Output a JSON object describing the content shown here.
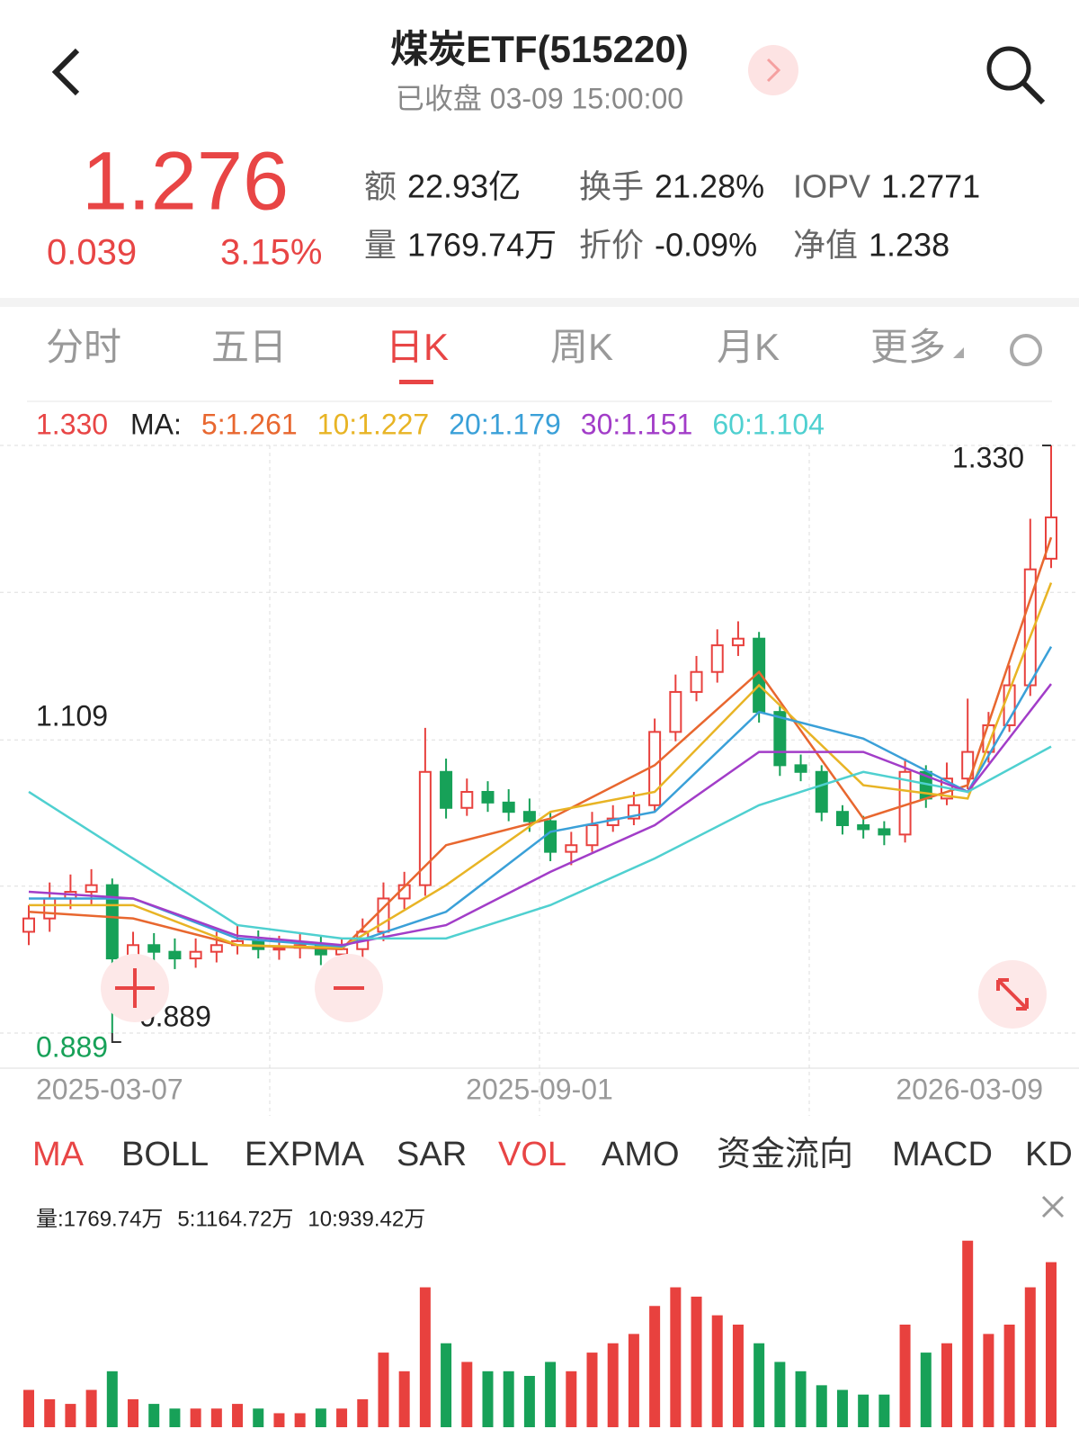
{
  "header": {
    "title": "煤炭ETF(515220)",
    "status": "已收盘 03-09 15:00:00"
  },
  "quote": {
    "price": "1.276",
    "change": "0.039",
    "change_pct": "3.15%",
    "stats": [
      [
        "额",
        "22.93亿"
      ],
      [
        "换手",
        "21.28%"
      ],
      [
        "IOPV",
        "1.2771"
      ],
      [
        "量",
        "1769.74万"
      ],
      [
        "折价",
        "-0.09%"
      ],
      [
        "净值",
        "1.238"
      ]
    ]
  },
  "tabs": [
    "分时",
    "五日",
    "日K",
    "周K",
    "月K",
    "更多"
  ],
  "ma_legend": [
    "MA:",
    "5:1.261",
    "10:1.227",
    "20:1.179",
    "30:1.151",
    "60:1.104"
  ],
  "indicator_tabs": [
    "MA",
    "BOLL",
    "EXPMA",
    "SAR",
    "VOL",
    "AMO",
    "资金流向",
    "MACD",
    "KD"
  ],
  "volume_legend": [
    "量:1769.74万",
    "5:1164.72万",
    "10:939.42万"
  ],
  "chart_data": {
    "type": "candlestick",
    "ylim": [
      0.889,
      1.33
    ],
    "yticks": [
      0.889,
      1.109,
      {
        "value": 1.33,
        "label": "1.330"
      }
    ],
    "x_labels": [
      {
        "index": 0,
        "label": "2025-03-07"
      },
      {
        "index": 25,
        "label": "2025-09-01"
      },
      {
        "index": 49,
        "label": "2026-03-09"
      }
    ],
    "up_color": "#e8413e",
    "down_color": "#17a158",
    "open": [
      0.965,
      0.975,
      0.99,
      0.995,
      1.0,
      0.945,
      0.955,
      0.95,
      0.945,
      0.95,
      0.955,
      0.958,
      0.952,
      0.953,
      0.955,
      0.948,
      0.952,
      0.965,
      0.99,
      1.0,
      1.085,
      1.058,
      1.07,
      1.062,
      1.055,
      1.048,
      1.025,
      1.03,
      1.045,
      1.05,
      1.06,
      1.115,
      1.145,
      1.16,
      1.18,
      1.185,
      1.13,
      1.09,
      1.085,
      1.055,
      1.045,
      1.042,
      1.038,
      1.085,
      1.065,
      1.08,
      1.1,
      1.12,
      1.15,
      1.245
    ],
    "high": [
      0.985,
      1.002,
      1.008,
      1.012,
      1.005,
      0.965,
      0.964,
      0.96,
      0.96,
      0.965,
      0.97,
      0.966,
      0.962,
      0.964,
      0.962,
      0.96,
      0.975,
      1.002,
      1.01,
      1.118,
      1.095,
      1.08,
      1.078,
      1.072,
      1.065,
      1.055,
      1.04,
      1.055,
      1.06,
      1.07,
      1.125,
      1.158,
      1.172,
      1.192,
      1.198,
      1.19,
      1.135,
      1.098,
      1.09,
      1.06,
      1.052,
      1.048,
      1.095,
      1.09,
      1.092,
      1.14,
      1.13,
      1.165,
      1.275,
      1.33
    ],
    "low": [
      0.955,
      0.965,
      0.982,
      0.985,
      0.889,
      0.935,
      0.942,
      0.937,
      0.938,
      0.942,
      0.948,
      0.945,
      0.944,
      0.945,
      0.94,
      0.942,
      0.946,
      0.958,
      0.982,
      0.992,
      1.05,
      1.052,
      1.055,
      1.048,
      1.04,
      1.018,
      1.015,
      1.025,
      1.04,
      1.045,
      1.055,
      1.108,
      1.138,
      1.152,
      1.172,
      1.122,
      1.082,
      1.078,
      1.048,
      1.038,
      1.035,
      1.03,
      1.032,
      1.058,
      1.06,
      1.072,
      1.092,
      1.115,
      1.142,
      1.238
    ],
    "close": [
      0.975,
      0.99,
      0.995,
      1.0,
      0.945,
      0.955,
      0.95,
      0.945,
      0.95,
      0.955,
      0.958,
      0.952,
      0.953,
      0.955,
      0.948,
      0.952,
      0.965,
      0.99,
      1.0,
      1.085,
      1.058,
      1.07,
      1.062,
      1.055,
      1.048,
      1.025,
      1.03,
      1.045,
      1.05,
      1.06,
      1.115,
      1.145,
      1.16,
      1.18,
      1.185,
      1.13,
      1.09,
      1.085,
      1.055,
      1.045,
      1.042,
      1.038,
      1.085,
      1.065,
      1.08,
      1.1,
      1.12,
      1.15,
      1.237,
      1.276
    ],
    "ma_series": [
      {
        "color": "#e8672f",
        "x": [
          0,
          5,
          10,
          15,
          20,
          25,
          30,
          35,
          40,
          45,
          49
        ],
        "values": [
          0.98,
          0.975,
          0.955,
          0.952,
          1.03,
          1.05,
          1.09,
          1.16,
          1.05,
          1.075,
          1.261
        ]
      },
      {
        "color": "#e8b425",
        "x": [
          0,
          5,
          10,
          15,
          20,
          25,
          30,
          35,
          40,
          45,
          49
        ],
        "values": [
          0.985,
          0.985,
          0.955,
          0.953,
          1.0,
          1.055,
          1.07,
          1.15,
          1.075,
          1.065,
          1.227
        ]
      },
      {
        "color": "#3aa0d8",
        "x": [
          0,
          5,
          10,
          15,
          20,
          25,
          30,
          35,
          40,
          45,
          49
        ],
        "values": [
          0.99,
          0.99,
          0.96,
          0.954,
          0.98,
          1.04,
          1.055,
          1.13,
          1.11,
          1.07,
          1.179
        ]
      },
      {
        "color": "#a23dc8",
        "x": [
          0,
          5,
          10,
          15,
          20,
          25,
          30,
          35,
          40,
          45,
          49
        ],
        "values": [
          0.995,
          0.99,
          0.962,
          0.955,
          0.97,
          1.01,
          1.045,
          1.1,
          1.1,
          1.07,
          1.151
        ]
      },
      {
        "color": "#4fd0d0",
        "x": [
          0,
          5,
          10,
          15,
          20,
          25,
          30,
          35,
          40,
          45,
          49
        ],
        "values": [
          1.07,
          1.02,
          0.97,
          0.96,
          0.96,
          0.985,
          1.02,
          1.06,
          1.085,
          1.07,
          1.104
        ]
      }
    ],
    "annotations": [
      {
        "label": "1.330",
        "value": 1.33,
        "index": 49
      },
      {
        "label": "0.889",
        "value": 0.889,
        "index": 4
      }
    ],
    "volume": {
      "ylim": [
        0,
        2200
      ],
      "values": [
        400,
        300,
        250,
        400,
        600,
        300,
        250,
        200,
        200,
        200,
        250,
        200,
        150,
        150,
        200,
        200,
        300,
        800,
        600,
        1500,
        900,
        700,
        600,
        600,
        550,
        700,
        600,
        800,
        900,
        1000,
        1300,
        1500,
        1400,
        1200,
        1100,
        900,
        700,
        600,
        450,
        400,
        350,
        350,
        1100,
        800,
        900,
        2000,
        1000,
        1100,
        1500,
        1769.74
      ]
    }
  }
}
